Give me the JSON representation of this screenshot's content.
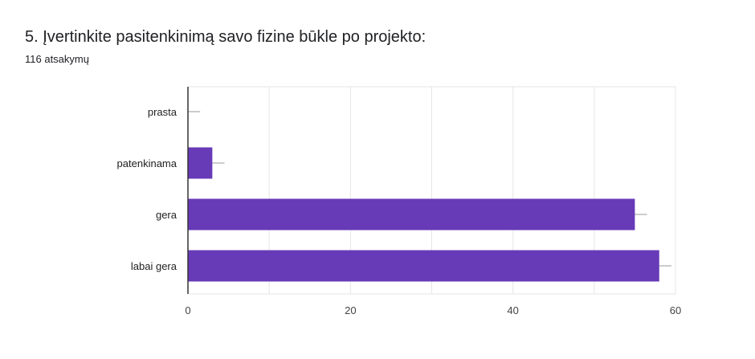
{
  "question": {
    "title": "5. Įvertinkite pasitenkinimą savo fizine būkle po projekto:",
    "responses": "116 atsakymų"
  },
  "chart_data": {
    "type": "bar",
    "orientation": "horizontal",
    "categories": [
      "prasta",
      "patenkinama",
      "gera",
      "labai gera"
    ],
    "values": [
      0,
      3,
      55,
      58
    ],
    "error_bars": [
      1.5,
      1.5,
      1.5,
      1.5
    ],
    "xlim": [
      0,
      60
    ],
    "xticks": [
      0,
      20,
      40,
      60
    ],
    "grid": true,
    "title": "",
    "xlabel": "",
    "ylabel": "",
    "bar_color": "#673ab7",
    "error_bar_color": "#999999",
    "grid_color": "#e6e6e6"
  }
}
